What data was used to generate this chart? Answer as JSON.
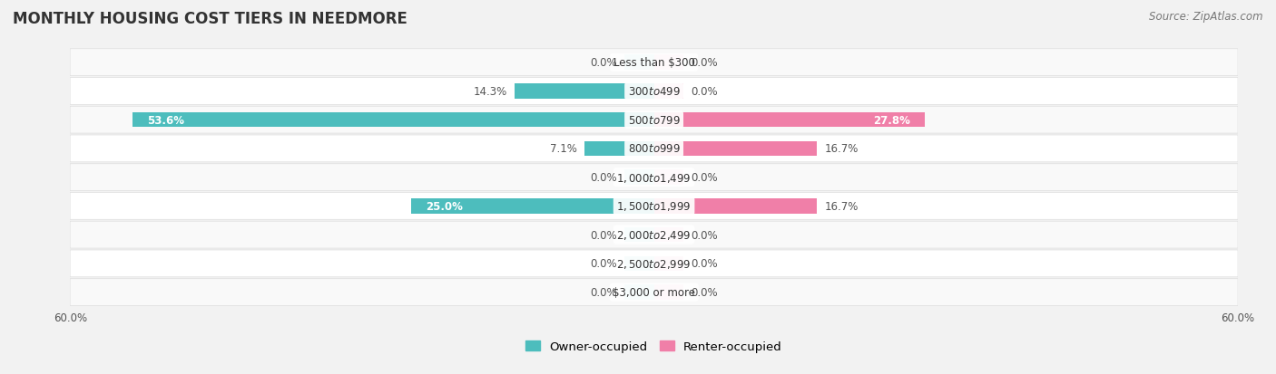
{
  "title": "MONTHLY HOUSING COST TIERS IN NEEDMORE",
  "source": "Source: ZipAtlas.com",
  "categories": [
    "Less than $300",
    "$300 to $499",
    "$500 to $799",
    "$800 to $999",
    "$1,000 to $1,499",
    "$1,500 to $1,999",
    "$2,000 to $2,499",
    "$2,500 to $2,999",
    "$3,000 or more"
  ],
  "owner_values": [
    0.0,
    14.3,
    53.6,
    7.1,
    0.0,
    25.0,
    0.0,
    0.0,
    0.0
  ],
  "renter_values": [
    0.0,
    0.0,
    27.8,
    16.7,
    0.0,
    16.7,
    0.0,
    0.0,
    0.0
  ],
  "owner_color": "#4DBDBD",
  "renter_color": "#F07FA8",
  "owner_color_light": "#A8DEDE",
  "renter_color_light": "#F9C0D4",
  "axis_max": 60.0,
  "background_color": "#f2f2f2",
  "row_bg_odd": "#f9f9f9",
  "row_bg_even": "#ffffff",
  "title_fontsize": 12,
  "source_fontsize": 8.5,
  "label_fontsize": 8.5,
  "value_fontsize": 8.5,
  "legend_fontsize": 9.5,
  "axis_label_fontsize": 8.5,
  "stub_size": 3.0
}
